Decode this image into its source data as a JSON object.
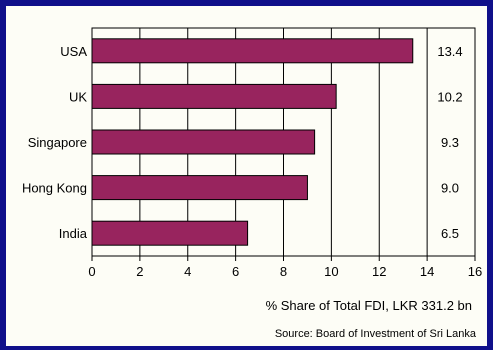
{
  "chart_data": {
    "type": "bar",
    "orientation": "horizontal",
    "categories": [
      "USA",
      "UK",
      "Singapore",
      "Hong Kong",
      "India"
    ],
    "values": [
      13.4,
      10.2,
      9.3,
      9.0,
      6.5
    ],
    "value_labels": [
      "13.4",
      "10.2",
      "9.3",
      "9.0",
      "6.5"
    ],
    "xlim": [
      0,
      16
    ],
    "xticks": [
      "0",
      "2",
      "4",
      "6",
      "8",
      "10",
      "12",
      "14",
      "16"
    ],
    "xlabel": "% Share of Total FDI, LKR 331.2 bn",
    "source": "Source: Board of Investment of Sri Lanka",
    "grid": "vertical",
    "bar_color": "#98245e",
    "background": "#10108a"
  }
}
